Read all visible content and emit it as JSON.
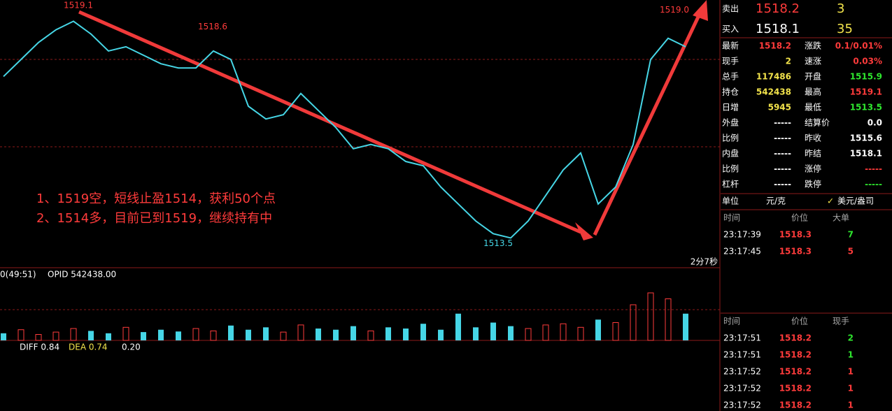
{
  "chart": {
    "ylim": [
      1513.1,
      1519.4
    ],
    "closes": [
      1517.6,
      1518.0,
      1518.4,
      1518.7,
      1518.9,
      1518.6,
      1518.2,
      1518.3,
      1518.1,
      1517.9,
      1517.8,
      1517.8,
      1518.2,
      1518.0,
      1516.9,
      1516.6,
      1516.7,
      1517.2,
      1516.8,
      1516.4,
      1515.9,
      1516.0,
      1515.9,
      1515.6,
      1515.5,
      1515.0,
      1514.6,
      1514.2,
      1513.9,
      1513.8,
      1514.2,
      1514.8,
      1515.4,
      1515.8,
      1514.6,
      1515.0,
      1516.0,
      1518.0,
      1518.5,
      1518.3
    ],
    "price_labels": [
      {
        "label": "1519.1",
        "value": 1519.1
      },
      {
        "label": "1518.6",
        "value": 1518.6
      },
      {
        "label": "1513.5",
        "value": 1513.5
      },
      {
        "label": "1519.0",
        "value": 1519.0
      }
    ],
    "notes": [
      "1、1519空，短线止盈1514，获利50个点",
      "2、1514多，目前已到1519，继续持有中"
    ],
    "timer": "2分7秒",
    "volume_header": [
      "0(49:51)",
      "OPID 542438.00"
    ],
    "vlim": [
      0,
      100
    ],
    "volume": [
      12,
      18,
      10,
      14,
      20,
      16,
      12,
      22,
      14,
      18,
      15,
      20,
      16,
      25,
      18,
      22,
      14,
      26,
      20,
      18,
      24,
      16,
      22,
      20,
      28,
      18,
      45,
      22,
      30,
      24,
      20,
      26,
      28,
      22,
      35,
      30,
      60,
      80,
      70,
      45
    ],
    "macd_header": [
      "DIFF 0.84",
      "DEA 0.74",
      "0.20"
    ]
  },
  "quote": {
    "ask": [
      "卖出",
      "1518.2",
      "3"
    ],
    "bid": [
      "买入",
      "1518.1",
      "35"
    ],
    "stats": [
      [
        "最新",
        "1518.2",
        "涨跌",
        "0.1/0.01%"
      ],
      [
        "现手",
        "2",
        "速涨",
        "0.03%"
      ],
      [
        "总手",
        "117486",
        "开盘",
        "1515.9"
      ],
      [
        "持仓",
        "542438",
        "最高",
        "1519.1"
      ],
      [
        "日增",
        "5945",
        "最低",
        "1513.5"
      ],
      [
        "外盘",
        "-----",
        "结算价",
        "0.0"
      ],
      [
        "比例",
        "-----",
        "昨收",
        "1515.6"
      ],
      [
        "内盘",
        "-----",
        "昨结",
        "1518.1"
      ],
      [
        "比例",
        "-----",
        "涨停",
        "-----"
      ],
      [
        "杠杆",
        "-----",
        "跌停",
        "-----"
      ]
    ],
    "unit": [
      "单位",
      "元/克",
      "美元/盎司"
    ],
    "big_trades": {
      "header": [
        "时间",
        "价位",
        "大单"
      ],
      "rows": [
        [
          "23:17:39",
          "1518.3",
          "7"
        ],
        [
          "23:17:45",
          "1518.3",
          "5"
        ]
      ]
    },
    "trades": {
      "header": [
        "时间",
        "价位",
        "现手"
      ],
      "rows": [
        [
          "23:17:51",
          "1518.2",
          "2"
        ],
        [
          "23:17:51",
          "1518.2",
          "1"
        ],
        [
          "23:17:52",
          "1518.2",
          "1"
        ],
        [
          "23:17:52",
          "1518.2",
          "1"
        ],
        [
          "23:17:52",
          "1518.2",
          "1"
        ]
      ]
    }
  }
}
